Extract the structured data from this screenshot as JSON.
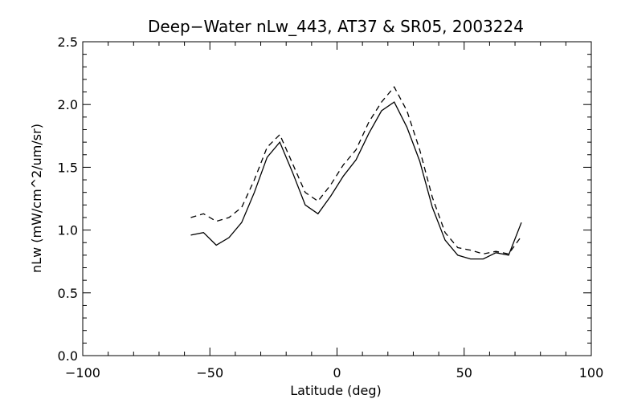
{
  "chart_data": {
    "type": "line",
    "title": "Deep−Water nLw_443, AT37 & SR05, 2003224",
    "xlabel": "Latitude (deg)",
    "ylabel": "nLw (mW/cm^2/um/sr)",
    "xlim": [
      -100,
      100
    ],
    "ylim": [
      0.0,
      2.5
    ],
    "x_ticks": [
      "−100",
      "−50",
      "0",
      "50",
      "100"
    ],
    "y_ticks": [
      "0.0",
      "0.5",
      "1.0",
      "1.5",
      "2.0",
      "2.5"
    ],
    "grid": false,
    "series": [
      {
        "style": "solid",
        "color": "#000000",
        "x": [
          -57.5,
          -52.5,
          -47.5,
          -42.5,
          -37.5,
          -32.5,
          -27.5,
          -22.5,
          -17.5,
          -12.5,
          -7.5,
          -2.5,
          2.5,
          7.5,
          12.5,
          17.5,
          22.5,
          27.5,
          32.5,
          37.5,
          42.5,
          47.5,
          52.5,
          57.5,
          62.5,
          67.5,
          72.5
        ],
        "y": [
          0.96,
          0.98,
          0.88,
          0.94,
          1.06,
          1.3,
          1.58,
          1.7,
          1.46,
          1.2,
          1.13,
          1.27,
          1.43,
          1.56,
          1.77,
          1.95,
          2.02,
          1.82,
          1.55,
          1.18,
          0.92,
          0.8,
          0.77,
          0.77,
          0.82,
          0.8,
          1.06
        ]
      },
      {
        "style": "dashed",
        "color": "#000000",
        "x": [
          -57.5,
          -52.5,
          -47.5,
          -42.5,
          -37.5,
          -32.5,
          -27.5,
          -22.5,
          -17.5,
          -12.5,
          -7.5,
          -2.5,
          2.5,
          7.5,
          12.5,
          17.5,
          22.5,
          27.5,
          32.5,
          37.5,
          42.5,
          47.5,
          52.5,
          57.5,
          62.5,
          67.5,
          72.5
        ],
        "y": [
          1.1,
          1.13,
          1.07,
          1.1,
          1.18,
          1.4,
          1.66,
          1.76,
          1.53,
          1.3,
          1.23,
          1.36,
          1.52,
          1.64,
          1.86,
          2.02,
          2.14,
          1.95,
          1.64,
          1.26,
          0.98,
          0.86,
          0.84,
          0.81,
          0.83,
          0.81,
          0.95
        ]
      }
    ]
  }
}
